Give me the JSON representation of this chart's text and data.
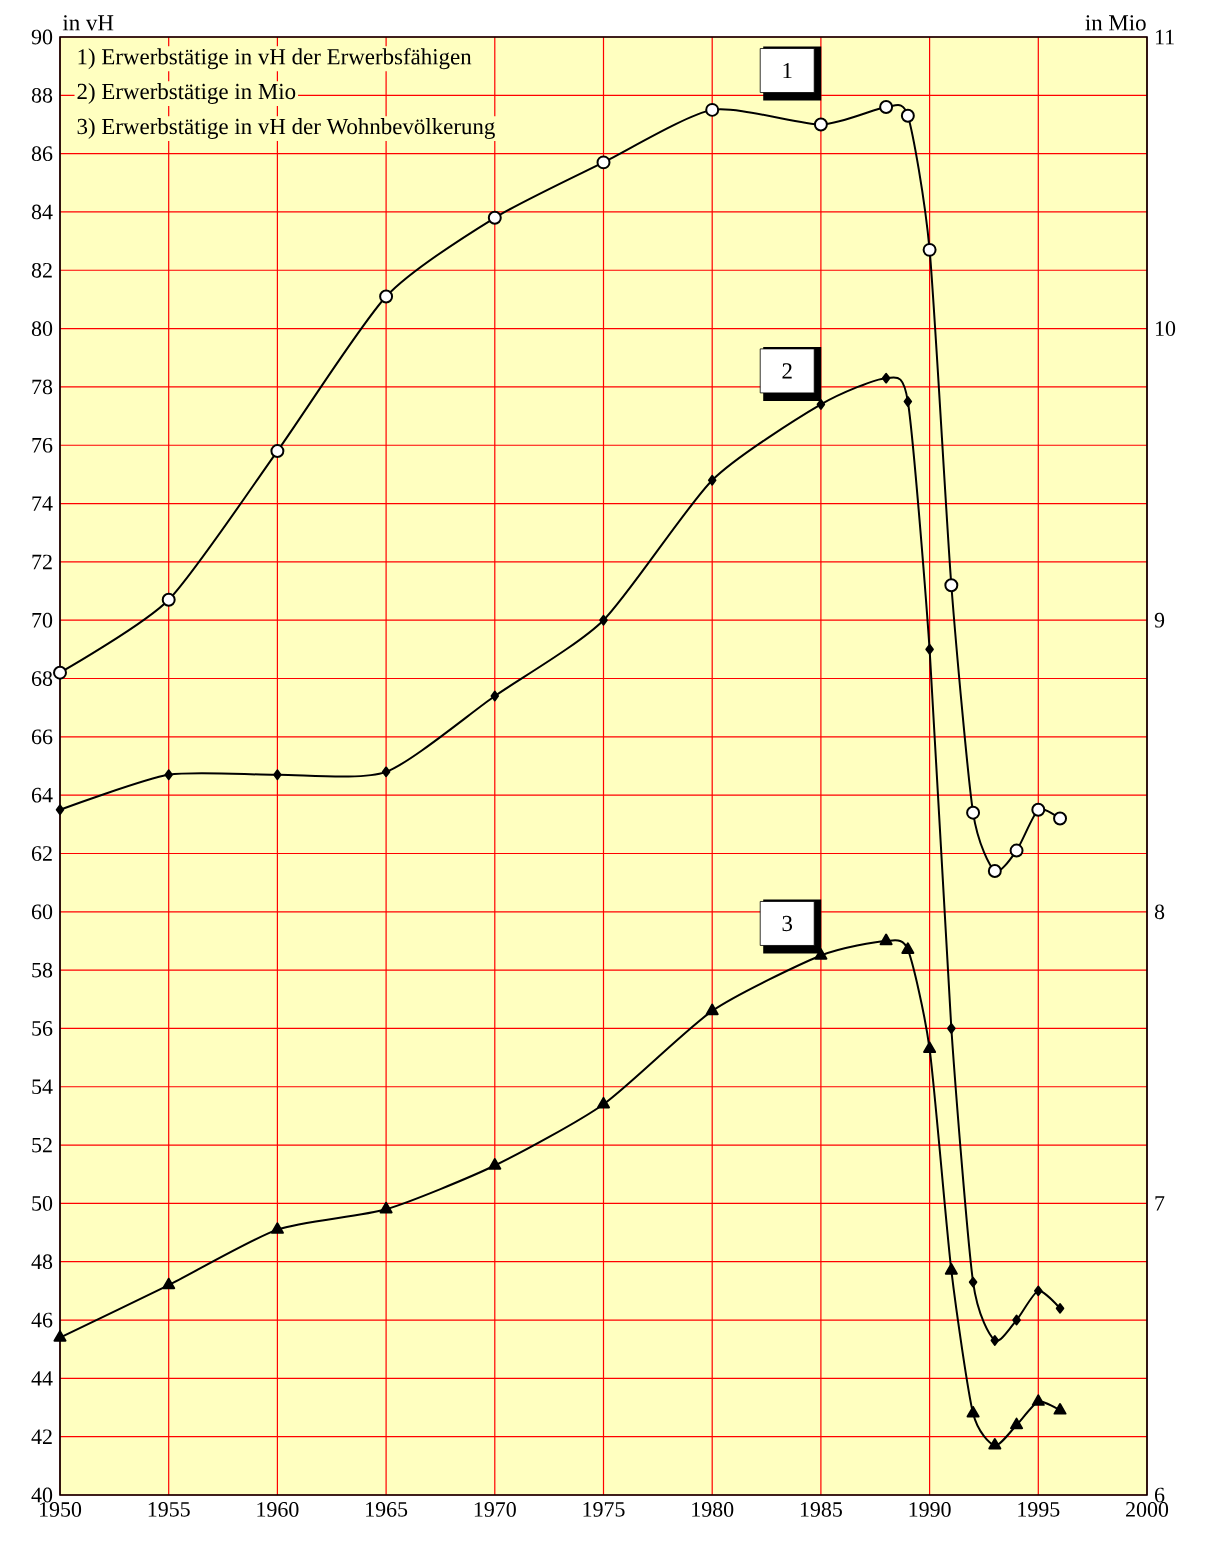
{
  "chart_data": {
    "type": "line",
    "ylabel": "in vH",
    "y2label": "in Mio",
    "x": [
      1950,
      1955,
      1960,
      1965,
      1970,
      1975,
      1980,
      1985,
      1988,
      1989,
      1990,
      1991,
      1992,
      1993,
      1994,
      1995,
      1996
    ],
    "series": [
      {
        "color": "#000000",
        "marker": "circle",
        "values": [
          68.2,
          70.7,
          75.8,
          81.1,
          83.8,
          85.7,
          87.5,
          87.0,
          87.6,
          87.3,
          82.7,
          71.2,
          63.4,
          61.4,
          62.1,
          63.5,
          63.2
        ]
      },
      {
        "color": "#000000",
        "marker": "diamond",
        "axis": "y2",
        "values": [
          8.35,
          8.47,
          8.47,
          8.48,
          8.74,
          9.0,
          9.48,
          9.74,
          9.83,
          9.75,
          8.9,
          7.6,
          6.73,
          6.53,
          6.6,
          6.7,
          6.64
        ]
      },
      {
        "color": "#000000",
        "marker": "triangle",
        "values": [
          45.4,
          47.2,
          49.1,
          49.8,
          51.3,
          53.4,
          56.6,
          58.5,
          59.0,
          58.7,
          55.3,
          47.7,
          42.8,
          41.7,
          42.4,
          43.2,
          42.9
        ]
      }
    ],
    "xlim": [
      1950,
      2000
    ],
    "xticks": [
      1950,
      1955,
      1960,
      1965,
      1970,
      1975,
      1980,
      1985,
      1990,
      1995,
      2000
    ],
    "ylim": [
      40,
      90
    ],
    "yticks": [
      40,
      42,
      44,
      46,
      48,
      50,
      52,
      54,
      56,
      58,
      60,
      62,
      64,
      66,
      68,
      70,
      72,
      74,
      76,
      78,
      80,
      82,
      84,
      86,
      88,
      90
    ],
    "y2lim": [
      6,
      11
    ],
    "y2ticks": [
      6,
      7,
      8,
      9,
      10,
      11
    ],
    "grid": true,
    "line_style": "solid",
    "annotations": [
      "1) Erwerbstätige in vH der Erwerbsfähigen",
      "2) Erwerbstätige in Mio",
      "3) Erwerbstätige in vH der Wohnbevölkerung",
      "1",
      "2",
      "3"
    ]
  }
}
